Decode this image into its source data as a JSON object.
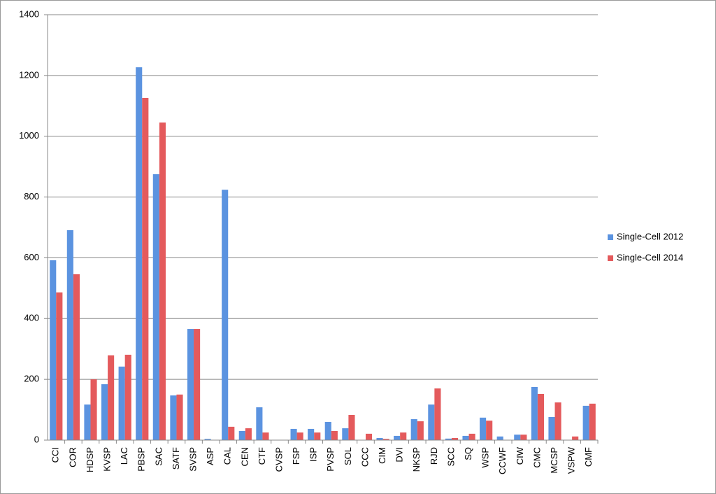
{
  "chart_data": {
    "type": "bar",
    "categories": [
      "CCI",
      "COR",
      "HDSP",
      "KVSP",
      "LAC",
      "PBSP",
      "SAC",
      "SATF",
      "SVSP",
      "ASP",
      "CAL",
      "CEN",
      "CTF",
      "CVSP",
      "FSP",
      "ISP",
      "PVSP",
      "SOL",
      "CCC",
      "CIM",
      "DVI",
      "NKSP",
      "RJD",
      "SCC",
      "SQ",
      "WSP",
      "CCWF",
      "CIW",
      "CMC",
      "MCSP",
      "VSPW",
      "CMF"
    ],
    "series": [
      {
        "name": "Single-Cell 2012",
        "color": "#5b93e0",
        "values": [
          592,
          691,
          117,
          184,
          242,
          1227,
          875,
          147,
          366,
          4,
          824,
          30,
          108,
          0,
          37,
          37,
          60,
          39,
          0,
          7,
          14,
          69,
          117,
          5,
          14,
          74,
          12,
          18,
          175,
          76,
          0,
          113
        ]
      },
      {
        "name": "Single-Cell 2014",
        "color": "#e45a5c",
        "values": [
          486,
          546,
          200,
          279,
          281,
          1126,
          1045,
          150,
          366,
          0,
          44,
          39,
          25,
          0,
          25,
          25,
          30,
          83,
          21,
          4,
          25,
          62,
          170,
          7,
          21,
          64,
          0,
          18,
          152,
          124,
          12,
          120
        ]
      }
    ],
    "ylim": [
      0,
      1400
    ],
    "yticks": [
      0,
      200,
      400,
      600,
      800,
      1000,
      1200,
      1400
    ],
    "grid": true,
    "legend": "right"
  }
}
